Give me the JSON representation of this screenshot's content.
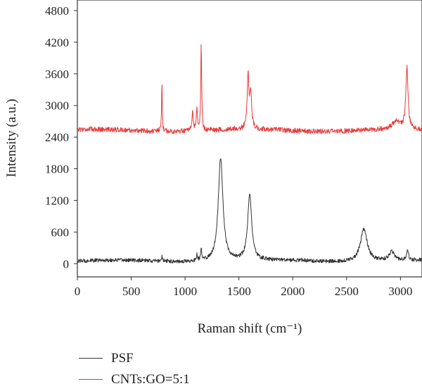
{
  "chart_data": {
    "type": "line",
    "xlabel": "Raman shift (cm⁻¹)",
    "ylabel": "Intensity (a.u.)",
    "xlim": [
      0,
      3200
    ],
    "ylim": [
      -250,
      5000
    ],
    "x_ticks": [
      0,
      500,
      1000,
      1500,
      2000,
      2500,
      3000
    ],
    "y_ticks": [
      0,
      600,
      1200,
      1800,
      2400,
      3000,
      3600,
      4200,
      4800
    ],
    "grid": false,
    "legend_position": "bottom-left",
    "series": [
      {
        "name": "PSF",
        "color": "#333333",
        "baseline": 50,
        "noise": 45,
        "peaks": [
          {
            "x": 785,
            "height": 90,
            "width": 6
          },
          {
            "x": 1110,
            "height": 110,
            "width": 6
          },
          {
            "x": 1150,
            "height": 210,
            "width": 6
          },
          {
            "x": 1330,
            "height": 1970,
            "width": 26
          },
          {
            "x": 1600,
            "height": 1250,
            "width": 22
          },
          {
            "x": 2660,
            "height": 620,
            "width": 38
          },
          {
            "x": 2920,
            "height": 170,
            "width": 30
          },
          {
            "x": 3065,
            "height": 170,
            "width": 12
          }
        ]
      },
      {
        "name": "CNTs:GO=5:1",
        "color": "#e83a3a",
        "baseline": 2530,
        "noise": 60,
        "peaks": [
          {
            "x": 785,
            "height": 930,
            "width": 4
          },
          {
            "x": 1070,
            "height": 380,
            "width": 6
          },
          {
            "x": 1110,
            "height": 460,
            "width": 6
          },
          {
            "x": 1150,
            "height": 1630,
            "width": 5
          },
          {
            "x": 1585,
            "height": 1000,
            "width": 10
          },
          {
            "x": 1610,
            "height": 650,
            "width": 10
          },
          {
            "x": 2960,
            "height": 150,
            "width": 40
          },
          {
            "x": 3060,
            "height": 1180,
            "width": 12
          }
        ]
      }
    ]
  }
}
